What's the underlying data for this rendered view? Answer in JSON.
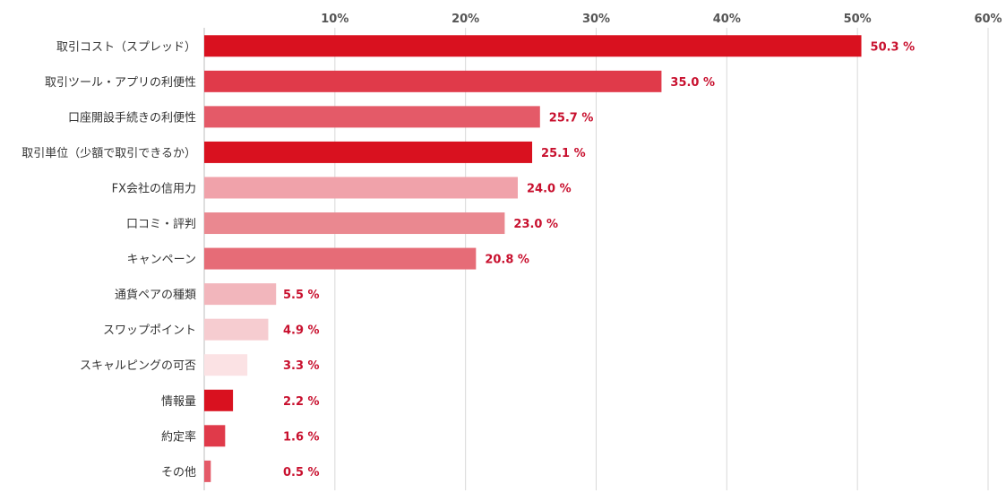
{
  "chart_data": {
    "type": "bar",
    "orientation": "horizontal",
    "categories": [
      "取引コスト（スプレッド）",
      "取引ツール・アプリの利便性",
      "口座開設手続きの利便性",
      "取引単位（少額で取引できるか）",
      "FX会社の信用力",
      "口コミ・評判",
      "キャンペーン",
      "通貨ペアの種類",
      "スワップポイント",
      "スキャルピングの可否",
      "情報量",
      "約定率",
      "その他"
    ],
    "values": [
      50.3,
      35.0,
      25.7,
      25.1,
      24.0,
      23.0,
      20.8,
      5.5,
      4.9,
      3.3,
      2.2,
      1.6,
      0.5
    ],
    "value_labels": [
      "50.3 %",
      "35.0 %",
      "25.7 %",
      "25.1 %",
      "24.0 %",
      "23.0 %",
      "20.8 %",
      "5.5 %",
      "4.9 %",
      "3.3 %",
      "2.2 %",
      "1.6 %",
      "0.5 %"
    ],
    "bar_colors": [
      "#d9111f",
      "#e03a4a",
      "#e45a68",
      "#d9111f",
      "#f0a2aa",
      "#ea8890",
      "#e66c77",
      "#f2b6bc",
      "#f6ccd0",
      "#fbe2e4",
      "#d9111f",
      "#e03a4a",
      "#e45a68"
    ],
    "value_label_color": "#c8102e",
    "xlim": [
      0,
      60
    ],
    "xticks": [
      10,
      20,
      30,
      40,
      50,
      60
    ],
    "xtick_labels": [
      "10%",
      "20%",
      "30%",
      "40%",
      "50%",
      "60%"
    ],
    "xaxis_position": "top",
    "grid": true
  }
}
